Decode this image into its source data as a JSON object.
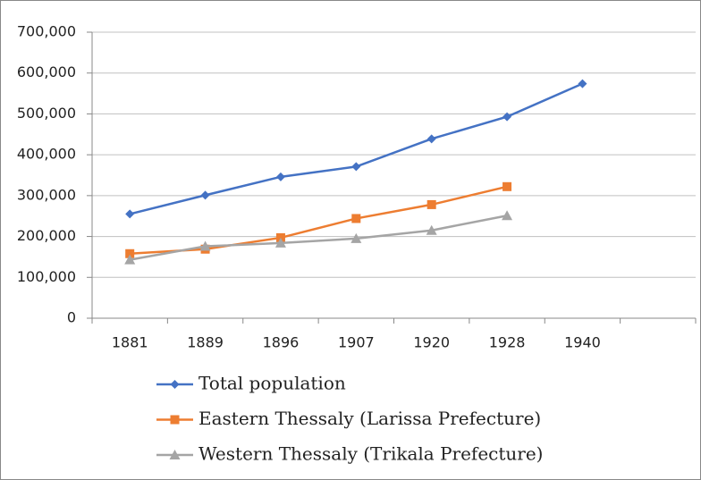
{
  "chart_data": {
    "type": "line",
    "categories": [
      "1881",
      "1889",
      "1896",
      "1907",
      "1920",
      "1928",
      "1940",
      null
    ],
    "series": [
      {
        "name": "Total population",
        "color": "#4472c4",
        "marker": "diamond",
        "values": [
          255000,
          301000,
          346000,
          371000,
          439000,
          493000,
          574000,
          null
        ]
      },
      {
        "name": "Eastern Thessaly (Larissa Prefecture)",
        "color": "#ed7d31",
        "marker": "square",
        "values": [
          158000,
          169000,
          197000,
          244000,
          278000,
          322000,
          null,
          null
        ]
      },
      {
        "name": "Western Thessaly (Trikala Prefecture)",
        "color": "#a5a5a5",
        "marker": "triangle",
        "values": [
          143000,
          176000,
          184000,
          195000,
          215000,
          251000,
          null,
          null
        ]
      }
    ],
    "ylim": [
      0,
      700000
    ],
    "yticks": [
      0,
      {
        "value": 100000,
        "label": "100,000"
      },
      {
        "value": 200000,
        "label": "200,000"
      },
      {
        "value": 300000,
        "label": "300,000"
      },
      {
        "value": 400000,
        "label": "400,000"
      },
      {
        "value": 500000,
        "label": "500,000"
      },
      {
        "value": 600000,
        "label": "600,000"
      },
      {
        "value": 700000,
        "label": "700,000"
      }
    ],
    "grid": true,
    "legend": "bottom"
  }
}
